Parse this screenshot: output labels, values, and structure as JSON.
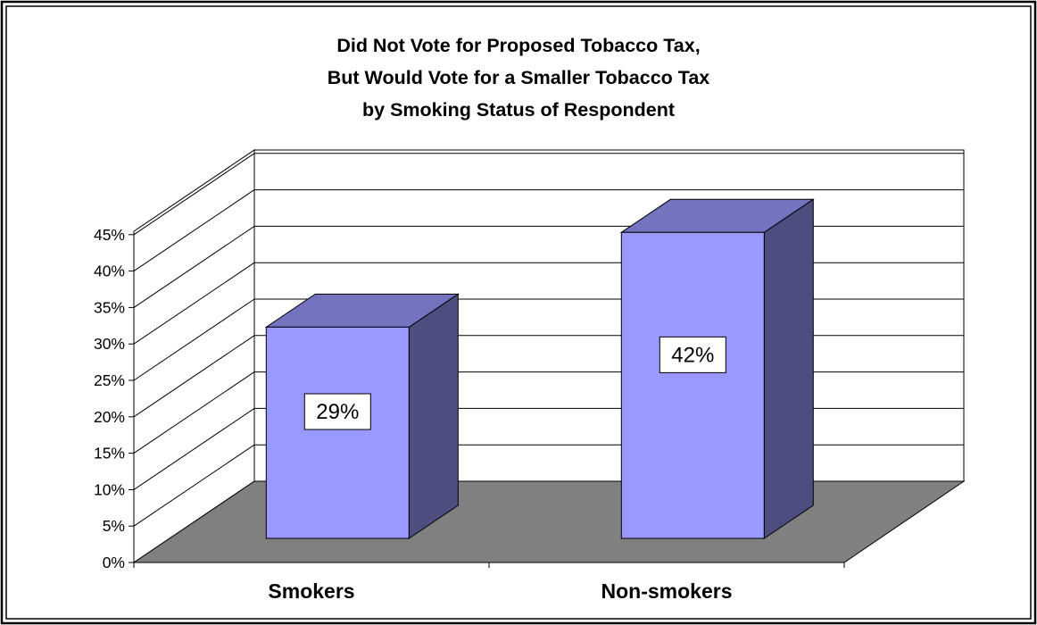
{
  "chart_data": {
    "type": "bar",
    "title": [
      "Did Not Vote for Proposed Tobacco Tax,",
      "But Would Vote for a Smaller Tobacco Tax",
      "by Smoking Status of Respondent"
    ],
    "categories": [
      "Smokers",
      "Non-smokers"
    ],
    "values": [
      29,
      42
    ],
    "data_labels": [
      "29%",
      "42%"
    ],
    "ylim": [
      0,
      45
    ],
    "yticks": [
      0,
      5,
      10,
      15,
      20,
      25,
      30,
      35,
      40,
      45
    ],
    "ytick_labels": [
      "0%",
      "5%",
      "10%",
      "15%",
      "20%",
      "25%",
      "30%",
      "35%",
      "40%",
      "45%"
    ],
    "grid": true,
    "legend": "none",
    "three_d": true,
    "colors": {
      "bar_front": "#9999ff",
      "bar_top": "#7373c0",
      "bar_side": "#4d4d80",
      "floor": "#808080"
    }
  }
}
